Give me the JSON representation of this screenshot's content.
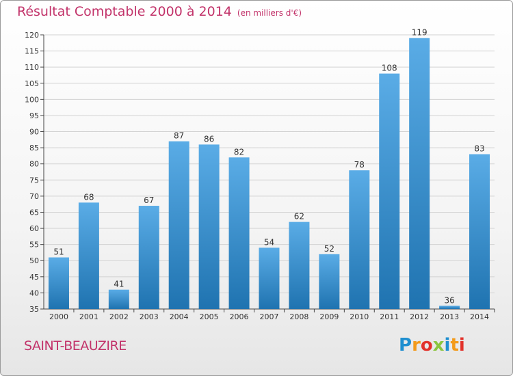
{
  "title": "Résultat Comptable 2000 à 2014",
  "subtitle": "(en milliers d'€)",
  "commune": "SAINT-BEAUZIRE",
  "logo": {
    "letters": [
      "P",
      "r",
      "o",
      "x",
      "i",
      "t",
      "i"
    ],
    "colors": [
      "#1f8fd0",
      "#f39a1a",
      "#e2322b",
      "#8bc53f",
      "#1f8fd0",
      "#f39a1a",
      "#e2322b"
    ]
  },
  "colors": {
    "bar_light": "#5aace6",
    "bar_dark": "#1f73b0",
    "title": "#c2336a"
  },
  "chart_data": {
    "type": "bar",
    "title": "Résultat Comptable 2000 à 2014",
    "categories": [
      "2000",
      "2001",
      "2002",
      "2003",
      "2004",
      "2005",
      "2006",
      "2007",
      "2008",
      "2009",
      "2010",
      "2011",
      "2012",
      "2013",
      "2014"
    ],
    "values": [
      51,
      68,
      41,
      67,
      87,
      86,
      82,
      54,
      62,
      52,
      78,
      108,
      119,
      36,
      83
    ],
    "ylim": [
      35,
      120
    ],
    "yticks": [
      35,
      40,
      45,
      50,
      55,
      60,
      65,
      70,
      75,
      80,
      85,
      90,
      95,
      100,
      105,
      110,
      115,
      120
    ],
    "grid": true,
    "data_labels": true
  }
}
